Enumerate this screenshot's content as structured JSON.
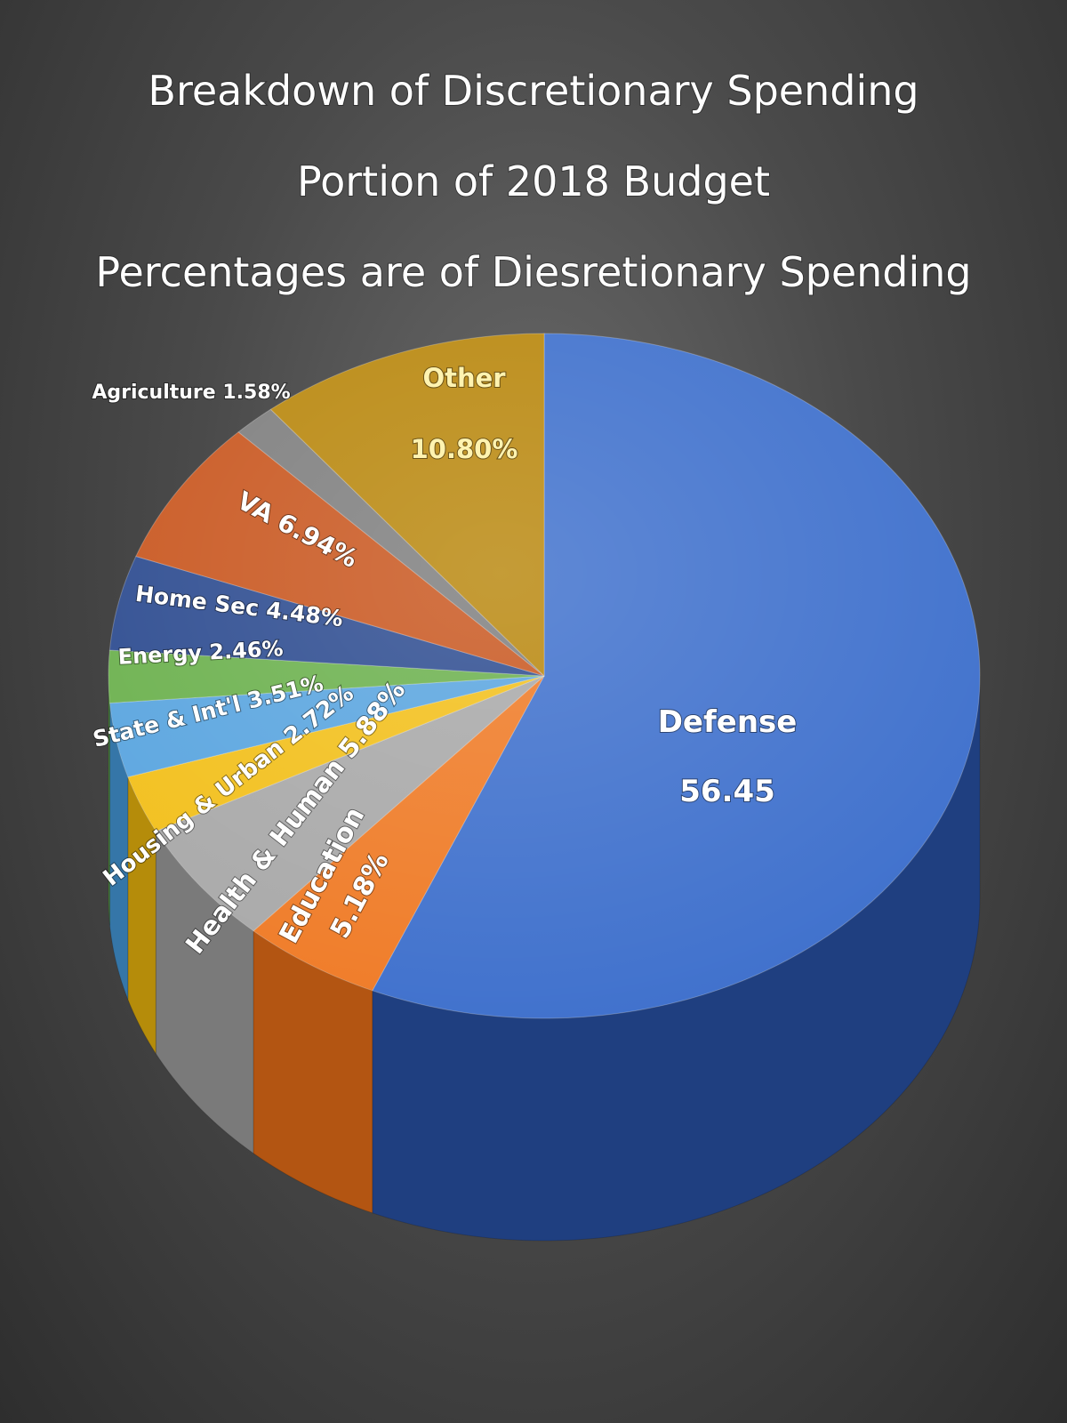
{
  "chart_data": {
    "type": "pie",
    "title": [
      "Breakdown of Discretionary Spending",
      "Portion of 2018 Budget",
      "Percentages are of Diesretionary Spending"
    ],
    "start_angle_deg": 0,
    "direction": "clockwise",
    "three_d": true,
    "slices": [
      {
        "name": "Defense",
        "value": 56.45,
        "label": [
          "Defense",
          "56.45"
        ],
        "color": "#3d6fcc",
        "side_color": "#1f3f80"
      },
      {
        "name": "Education",
        "value": 5.18,
        "label": [
          "Education",
          "5.18%"
        ],
        "color": "#ef7a25",
        "side_color": "#b35512"
      },
      {
        "name": "Health & Human",
        "value": 5.88,
        "label": [
          "Health & Human 5.88%"
        ],
        "color": "#a8a8a8",
        "side_color": "#7a7a7a"
      },
      {
        "name": "Housing & Urban",
        "value": 2.72,
        "label": [
          "Housing & Urban 2.72%"
        ],
        "color": "#f2bf19",
        "side_color": "#b58c0a"
      },
      {
        "name": "State & Int'l",
        "value": 3.51,
        "label": [
          "State & Int'l 3.51%"
        ],
        "color": "#58a4df",
        "side_color": "#3576a8"
      },
      {
        "name": "Energy",
        "value": 2.46,
        "label": [
          "Energy 2.46%"
        ],
        "color": "#6ab04c",
        "side_color": "#4a7f33"
      },
      {
        "name": "Home Sec",
        "value": 4.48,
        "label": [
          "Home Sec 4.48%"
        ],
        "color": "#2b4a8f",
        "side_color": "#1a2f5e"
      },
      {
        "name": "VA",
        "value": 6.94,
        "label": [
          "VA 6.94%"
        ],
        "color": "#c8551d",
        "side_color": "#8f3a12"
      },
      {
        "name": "Agriculture",
        "value": 1.58,
        "label": [
          "Agriculture 1.58%"
        ],
        "color": "#7d7d7d",
        "side_color": "#5a5a5a"
      },
      {
        "name": "Other",
        "value": 10.8,
        "label": [
          "Other",
          "10.80%"
        ],
        "color": "#b8860b",
        "side_color": "#7f5c07"
      }
    ]
  }
}
